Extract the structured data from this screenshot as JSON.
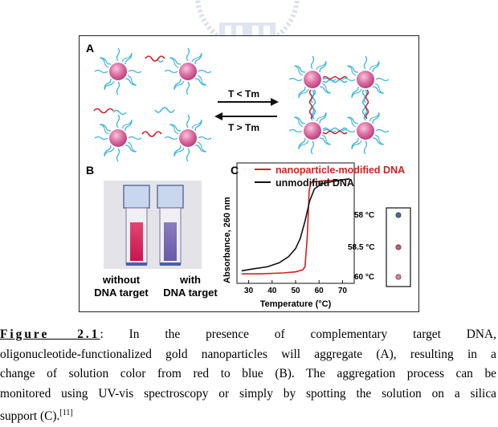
{
  "figure": {
    "panel_a_label": "A",
    "panel_b_label": "B",
    "panel_c_label": "C",
    "arrow_forward": "T < Tm",
    "arrow_reverse": "T > Tm",
    "vial_left_line1": "without",
    "vial_left_line2": "DNA target",
    "vial_right_line1": "with",
    "vial_right_line2": "DNA target",
    "spot_labels": [
      "58 °C",
      "58.5 °C",
      "60 °C"
    ],
    "spot_colors": [
      "#4a6a9c",
      "#c85a72",
      "#e27a9e"
    ]
  },
  "chart_data": {
    "type": "line",
    "xlabel": "Temperature (°C)",
    "ylabel": "Absorbance, 260 nm",
    "x_ticks": [
      "30",
      "40",
      "50",
      "60",
      "70"
    ],
    "xlim": [
      25,
      75
    ],
    "series": [
      {
        "name": "nanoparticle-modified DNA",
        "color": "#d42020",
        "x": [
          27,
          35,
          45,
          50,
          53,
          54,
          55,
          55.8,
          56.5,
          58,
          62,
          70,
          73
        ],
        "y": [
          0.03,
          0.03,
          0.04,
          0.05,
          0.07,
          0.1,
          0.4,
          0.85,
          0.93,
          0.94,
          0.95,
          0.96,
          0.97
        ]
      },
      {
        "name": "unmodified DNA",
        "color": "#111111",
        "x": [
          27,
          32,
          38,
          43,
          47,
          50,
          52,
          54,
          56,
          58,
          61,
          65,
          70,
          73
        ],
        "y": [
          0.06,
          0.08,
          0.1,
          0.14,
          0.2,
          0.28,
          0.38,
          0.55,
          0.75,
          0.87,
          0.92,
          0.94,
          0.96,
          0.97
        ]
      }
    ]
  },
  "caption": {
    "label": "Figure 2.1",
    "line1_rest": ": In the presence of complementary target DNA,",
    "line2": "oligonucleotide-functionalized gold nanoparticles will aggregate (A), resulting in a",
    "line3": "change of solution color from red to blue (B). The aggregation process can be",
    "line4": "monitored using UV-vis spectroscopy or simply by spotting the solution on a silica",
    "line5": "support (C).",
    "ref": "[11]"
  }
}
